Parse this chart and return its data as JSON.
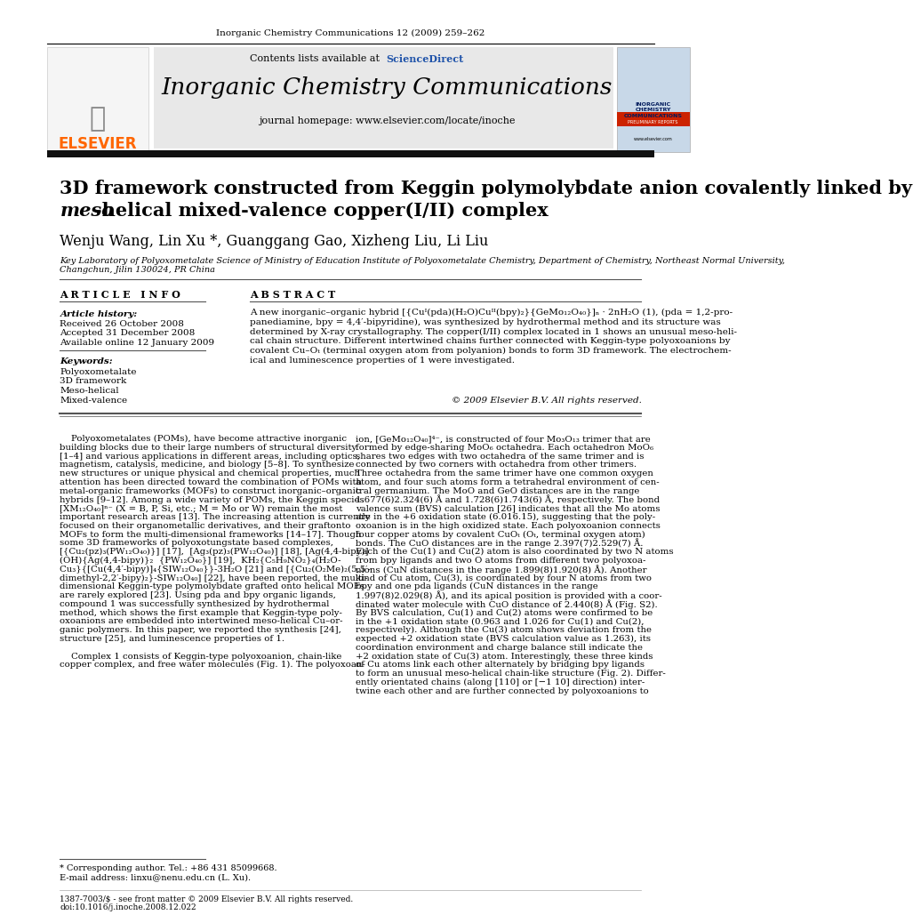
{
  "journal_header": "Inorganic Chemistry Communications 12 (2009) 259–262",
  "journal_name": "Inorganic Chemistry Communications",
  "journal_homepage": "journal homepage: www.elsevier.com/locate/inoche",
  "sciencedirect": "ScienceDirect",
  "title_line1": "3D framework constructed from Keggin polymolybdate anion covalently linked by",
  "title_line2_italic": "meso",
  "title_line2_rest": "-helical mixed-valence copper(I/II) complex",
  "authors": "Wenju Wang, Lin Xu *, Guanggang Gao, Xizheng Liu, Li Liu",
  "affiliation": "Key Laboratory of Polyoxometalate Science of Ministry of Education Institute of Polyoxometalate Chemistry, Department of Chemistry, Northeast Normal University,",
  "affiliation2": "Changchun, Jilin 130024, PR China",
  "article_info_title": "A R T I C L E   I N F O",
  "abstract_title": "A B S T R A C T",
  "article_history_label": "Article history:",
  "received": "Received 26 October 2008",
  "accepted": "Accepted 31 December 2008",
  "available": "Available online 12 January 2009",
  "keywords_label": "Keywords:",
  "keyword1": "Polyoxometalate",
  "keyword2": "3D framework",
  "keyword3": "Meso-helical",
  "keyword4": "Mixed-valence",
  "abstract_lines": [
    "A new inorganic–organic hybrid [{Cuᴵ(pda)(H₂O)Cuᴵᴵ(bpy)₂}{GeMo₁₂O₄₀}]ₙ · 2nH₂O (1), (pda = 1,2-pro-",
    "panediamine, bpy = 4,4′-bipyridine), was synthesized by hydrothermal method and its structure was",
    "determined by X-ray crystallography. The copper(I/II) complex located in 1 shows an unusual meso-heli-",
    "cal chain structure. Different intertwined chains further connected with Keggin-type polyoxoanions by",
    "covalent Cu–Oₜ (terminal oxygen atom from polyanion) bonds to form 3D framework. The electrochem-",
    "ical and luminescence properties of 1 were investigated."
  ],
  "copyright": "© 2009 Elsevier B.V. All rights reserved.",
  "left_col_lines": [
    "    Polyoxometalates (POMs), have become attractive inorganic",
    "building blocks due to their large numbers of structural diversity",
    "[1–4] and various applications in different areas, including optics,",
    "magnetism, catalysis, medicine, and biology [5–8]. To synthesize",
    "new structures or unique physical and chemical properties, much",
    "attention has been directed toward the combination of POMs with",
    "metal-organic frameworks (MOFs) to construct inorganic–organic",
    "hybrids [9–12]. Among a wide variety of POMs, the Keggin species",
    "[XM₁₂O₄₀]ⁿ⁻ (X = B, P, Si, etc.; M = Mo or W) remain the most",
    "important research areas [13]. The increasing attention is currently",
    "focused on their organometallic derivatives, and their graftonto",
    "MOFs to form the multi-dimensional frameworks [14–17]. Though",
    "some 3D frameworks of polyoxotungstate based complexes,",
    "[{Cu₂(pz)₃(PW₁₂O₄₀)}] [17],  [Ag₃(pz)₃(PW₁₂O₄₀)] [18], [Ag(4,4-bipy)]",
    "(OH){Ag(4,4-bipy)}₂  {PW₁₂O₄₀}] [19],  KH₂{C₅H₉NO₂}₄(H₂O-",
    "Cu₃}{[Cu(4,4′-bipy)]₄{SIW₁₂O₄₀}}-3H₂O [21] and [{Cu₂(O₂Me)₂(5,5′-",
    "dimethyl-2,2′-bipy)₂}-SIW₁₂O₄₀] [22], have been reported, the multi-",
    "dimensional Keggin-type polymolybdate grafted onto helical MOFs",
    "are rarely explored [23]. Using pda and bpy organic ligands,",
    "compound 1 was successfully synthesized by hydrothermal",
    "method, which shows the first example that Keggin-type poly-",
    "oxoanions are embedded into intertwined meso-helical Cu–or-",
    "ganic polymers. In this paper, we reported the synthesis [24],",
    "structure [25], and luminescence properties of 1.",
    "",
    "    Complex 1 consists of Keggin-type polyoxoanion, chain-like",
    "copper complex, and free water molecules (Fig. 1). The polyoxoan-"
  ],
  "right_col_lines": [
    "ion, [GeMo₁₂O₄₀]⁴⁻, is constructed of four Mo₃O₁₃ trimer that are",
    "formed by edge-sharing MoO₆ octahedra. Each octahedron MoO₆",
    "shares two edges with two octahedra of the same trimer and is",
    "connected by two corners with octahedra from other trimers.",
    "Three octahedra from the same trimer have one common oxygen",
    "atom, and four such atoms form a tetrahedral environment of cen-",
    "tral germanium. The MoO and GeO distances are in the range",
    "1.677(6)2.324(6) Å and 1.728(6)1.743(6) Å, respectively. The bond",
    "valence sum (BVS) calculation [26] indicates that all the Mo atoms",
    "are in the +6 oxidation state (6.016.15), suggesting that the poly-",
    "oxoanion is in the high oxidized state. Each polyoxoanion connects",
    "four copper atoms by covalent CuOₜ (Oₜ, terminal oxygen atom)",
    "bonds. The CuO distances are in the range 2.397(7)2.529(7) Å.",
    "Each of the Cu(1) and Cu(2) atom is also coordinated by two N atoms",
    "from bpy ligands and two O atoms from different two polyoxoa-",
    "nions (CuN distances in the range 1.899(8)1.920(8) Å). Another",
    "kind of Cu atom, Cu(3), is coordinated by four N atoms from two",
    "bpy and one pda ligands (CuN distances in the range",
    "1.997(8)2.029(8) Å), and its apical position is provided with a coor-",
    "dinated water molecule with CuO distance of 2.440(8) Å (Fig. S2).",
    "By BVS calculation, Cu(1) and Cu(2) atoms were confirmed to be",
    "in the +1 oxidation state (0.963 and 1.026 for Cu(1) and Cu(2),",
    "respectively). Although the Cu(3) atom shows deviation from the",
    "expected +2 oxidation state (BVS calculation value as 1.263), its",
    "coordination environment and charge balance still indicate the",
    "+2 oxidation state of Cu(3) atom. Interestingly, these three kinds",
    "of Cu atoms link each other alternately by bridging bpy ligands",
    "to form an unusual meso-helical chain-like structure (Fig. 2). Differ-",
    "ently orientated chains (along [110] or [−1 10] direction) inter-",
    "twine each other and are further connected by polyoxoanions to"
  ],
  "footnote_star": "* Corresponding author. Tel.: +86 431 85099668.",
  "footnote_email": "E-mail address: linxu@nenu.edu.cn (L. Xu).",
  "footer_left": "1387-7003/$ - see front matter © 2009 Elsevier B.V. All rights reserved.",
  "footer_doi": "doi:10.1016/j.inoche.2008.12.022",
  "elsevier_color": "#FF6600",
  "sciencedirect_color": "#2255aa",
  "black_bar_color": "#111111",
  "header_bg": "#e8e8e8",
  "bg_color": "#ffffff"
}
